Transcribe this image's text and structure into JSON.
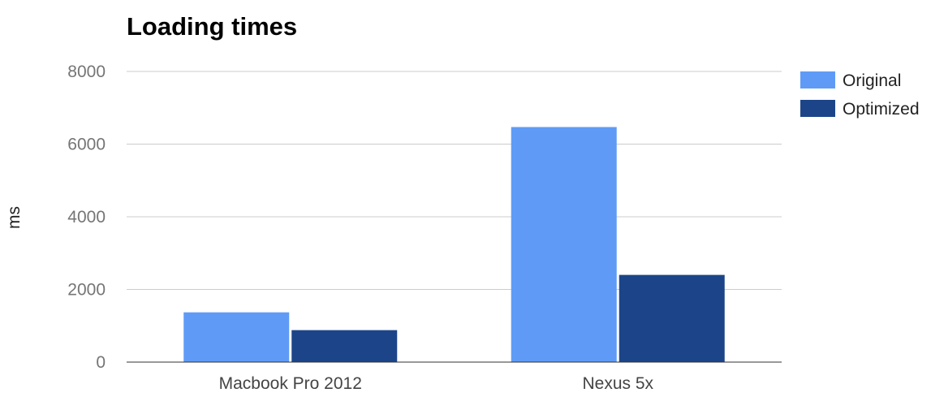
{
  "chart_data": {
    "type": "bar",
    "title": "Loading times",
    "xlabel": "",
    "ylabel": "ms",
    "categories": [
      "Macbook Pro 2012",
      "Nexus 5x"
    ],
    "series": [
      {
        "name": "Original",
        "values": [
          1370,
          6470
        ],
        "color": "#5f9bf6"
      },
      {
        "name": "Optimized",
        "values": [
          880,
          2400
        ],
        "color": "#1c4589"
      }
    ],
    "ylim": [
      0,
      8000
    ],
    "yticks": [
      0,
      2000,
      4000,
      6000,
      8000
    ],
    "grid": true,
    "legend_position": "right"
  }
}
